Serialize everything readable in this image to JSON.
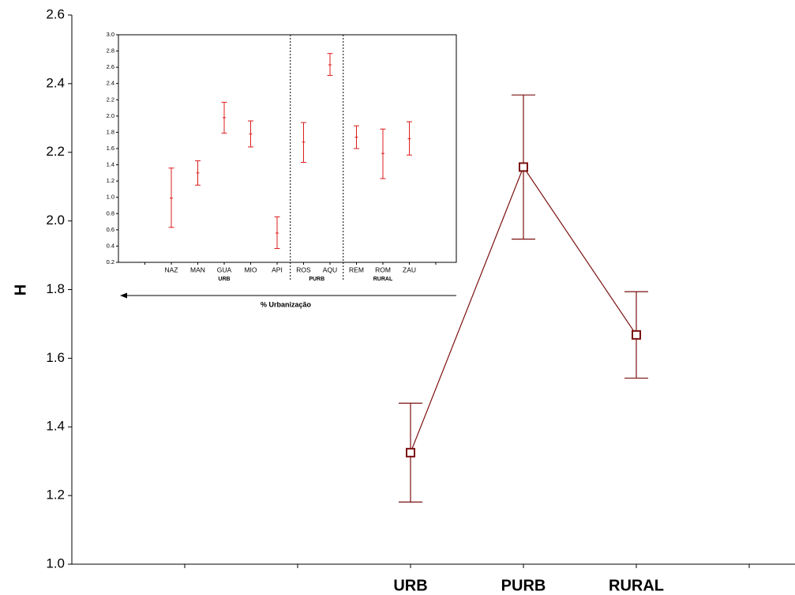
{
  "chart_data": [
    {
      "type": "line",
      "xlabel": "",
      "ylabel": "H",
      "ylim": [
        1.0,
        2.6
      ],
      "yticks": [
        "1.0",
        "1.2",
        "1.4",
        "1.6",
        "1.8",
        "2.0",
        "2.2",
        "2.4",
        "2.6"
      ],
      "categories": [
        "URB",
        "PURB",
        "RURAL"
      ],
      "values": [
        1.325,
        2.157,
        1.668
      ],
      "error_low": [
        1.181,
        1.947,
        1.542
      ],
      "error_high": [
        1.469,
        2.367,
        1.794
      ],
      "line_color": "#7b1010",
      "marker": "open-square"
    },
    {
      "type": "errorbar",
      "ylim": [
        0.2,
        3.0
      ],
      "yticks": [
        "0.2",
        "0.4",
        "0.6",
        "0.8",
        "1.0",
        "1.2",
        "1.4",
        "1.6",
        "1.8",
        "2.0",
        "2.2",
        "2.4",
        "2.6",
        "2.8",
        "3.0"
      ],
      "categories": [
        "NAZ",
        "MAN",
        "GUA",
        "MIO",
        "API",
        "ROS",
        "AQU",
        "REM",
        "ROM",
        "ZAU"
      ],
      "groups": [
        {
          "name": "URB",
          "members": [
            "NAZ",
            "MAN",
            "GUA",
            "MIO",
            "API"
          ]
        },
        {
          "name": "PURB",
          "members": [
            "ROS",
            "AQU"
          ]
        },
        {
          "name": "RURAL",
          "members": [
            "REM",
            "ROM",
            "ZAU"
          ]
        }
      ],
      "values": [
        0.99,
        1.3,
        1.98,
        1.78,
        0.56,
        1.68,
        2.63,
        1.74,
        1.54,
        1.72
      ],
      "error_low": [
        0.63,
        1.15,
        1.79,
        1.62,
        0.37,
        1.43,
        2.5,
        1.6,
        1.23,
        1.52
      ],
      "error_high": [
        1.36,
        1.45,
        2.17,
        1.94,
        0.76,
        1.92,
        2.77,
        1.88,
        1.84,
        1.93
      ],
      "arrow_label": "% Urbanização",
      "color": "#dd1c1c"
    }
  ]
}
